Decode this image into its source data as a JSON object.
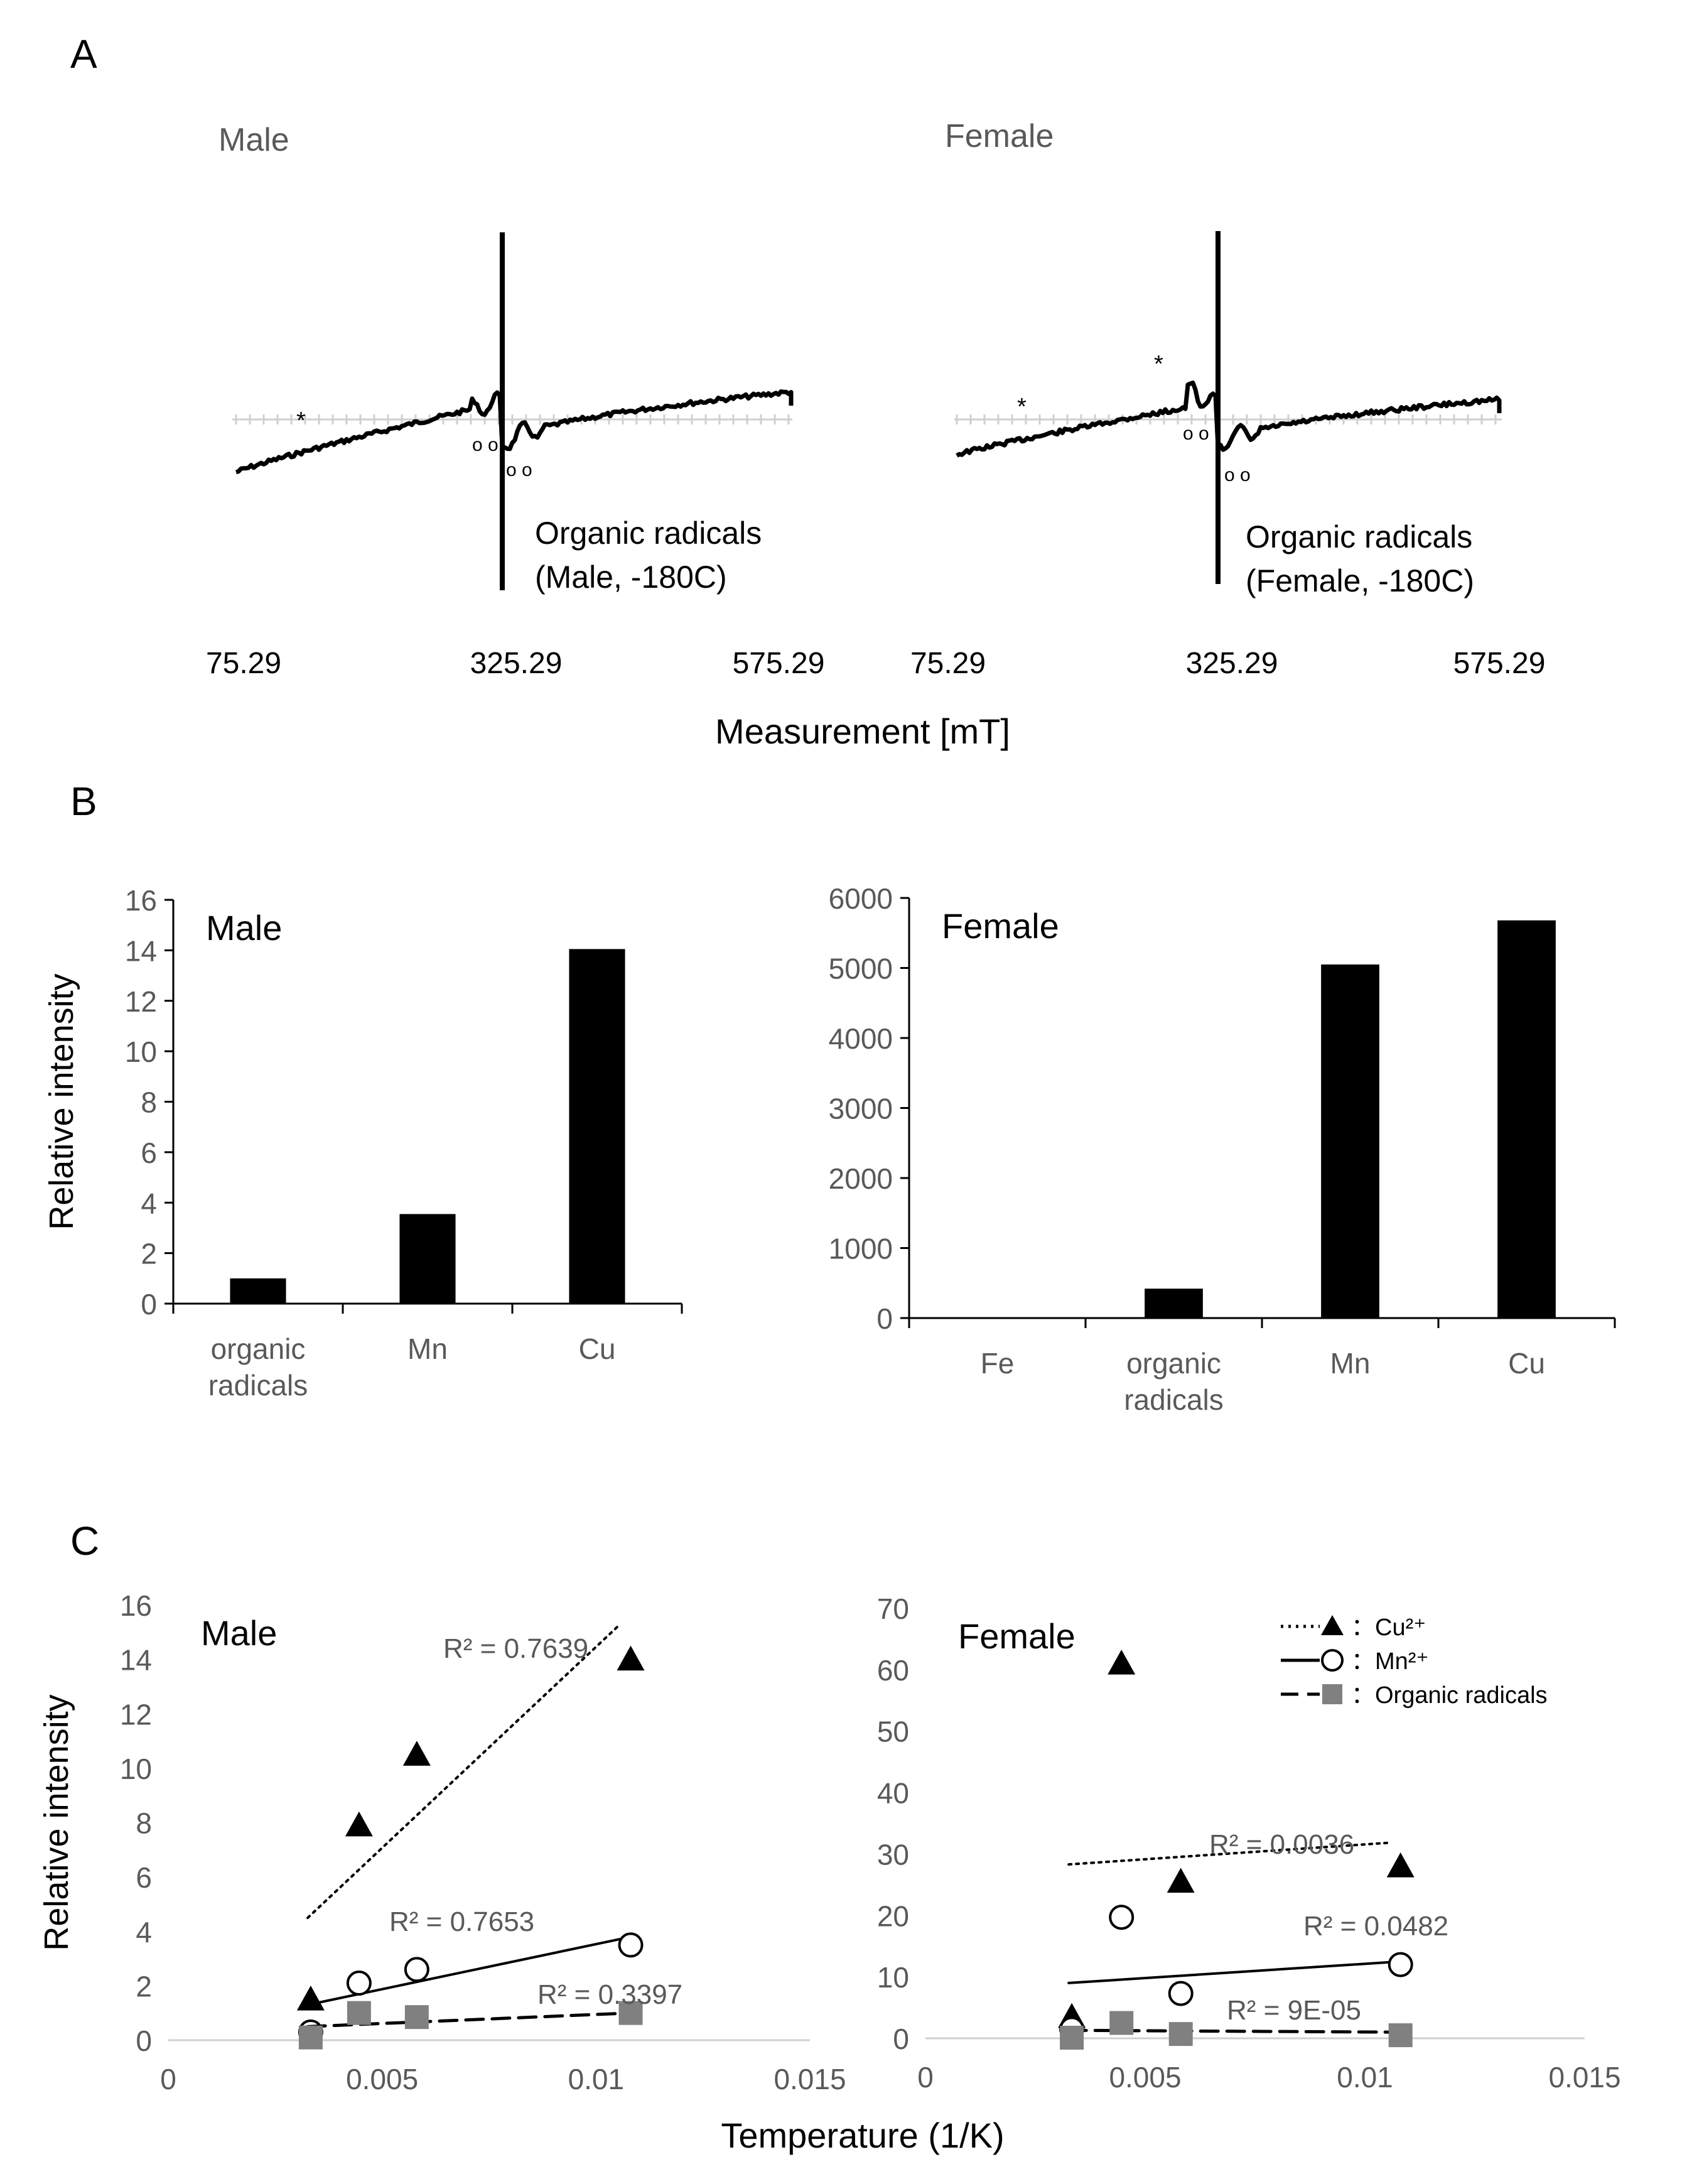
{
  "panels": {
    "A": {
      "label": "A",
      "xlabel": "Measurement [mT]",
      "male": {
        "title": "Male",
        "annotation_line1": "Organic radicals",
        "annotation_line2": "(Male, -180C)",
        "ticks": [
          "75.29",
          "325.29",
          "575.29"
        ],
        "asterisk": "*",
        "circles": "o o",
        "circles2": "o o"
      },
      "female": {
        "title": "Female",
        "annotation_line1": "Organic radicals",
        "annotation_line2": "(Female, -180C)",
        "ticks": [
          "75.29",
          "325.29",
          "575.29"
        ],
        "asterisk": "*",
        "circles": "o o",
        "circles2": "o o"
      }
    },
    "B": {
      "label": "B"
    },
    "C": {
      "label": "C"
    }
  },
  "chart_data": [
    {
      "id": "B-male",
      "type": "bar",
      "title": "Male",
      "ylabel": "Relative intensity",
      "categories": [
        [
          "organic",
          "radicals"
        ],
        [
          "Mn"
        ],
        [
          "Cu"
        ]
      ],
      "values": [
        1.0,
        3.55,
        14.05
      ],
      "ylim": [
        0,
        16
      ],
      "yticks": [
        0,
        2,
        4,
        6,
        8,
        10,
        12,
        14,
        16
      ],
      "color": "#000000"
    },
    {
      "id": "B-female",
      "type": "bar",
      "title": "Female",
      "ylabel": "",
      "categories": [
        [
          "Fe"
        ],
        [
          "organic",
          "radicals"
        ],
        [
          "Mn"
        ],
        [
          "Cu"
        ]
      ],
      "values": [
        0,
        420,
        5050,
        5680
      ],
      "ylim": [
        0,
        6000
      ],
      "yticks": [
        0,
        1000,
        2000,
        3000,
        4000,
        5000,
        6000
      ],
      "color": "#000000"
    },
    {
      "id": "C-male",
      "type": "scatter",
      "title": "Male",
      "ylabel": "Relative intensity",
      "xlabel": "Temperature (1/K)",
      "xlim": [
        0,
        0.015
      ],
      "ylim": [
        0,
        16
      ],
      "xticks": [
        "0",
        "0.005",
        "0.01",
        "0.015"
      ],
      "yticks": [
        0,
        2,
        4,
        6,
        8,
        10,
        12,
        14,
        16
      ],
      "series": [
        {
          "marker": "triangle",
          "color": "#000000",
          "x": [
            0.00333,
            0.00446,
            0.00581,
            0.01081
          ],
          "y": [
            1.5,
            7.9,
            10.5,
            14.0
          ],
          "trend": {
            "style": "dotted",
            "x": [
              0.00326,
              0.0105
            ],
            "y": [
              4.5,
              15.2
            ]
          },
          "r2": "R² = 0.7639"
        },
        {
          "marker": "circle",
          "color": "#000000",
          "x": [
            0.00333,
            0.00446,
            0.00581,
            0.01081
          ],
          "y": [
            0.3,
            2.1,
            2.6,
            3.5
          ],
          "trend": {
            "style": "solid",
            "x": [
              0.00326,
              0.01081
            ],
            "y": [
              1.3,
              3.8
            ]
          },
          "r2": "R² = 0.7653"
        },
        {
          "marker": "square",
          "color": "#808080",
          "x": [
            0.00333,
            0.00446,
            0.00581,
            0.01081
          ],
          "y": [
            0.1,
            1.0,
            0.85,
            1.0
          ],
          "trend": {
            "style": "dashed",
            "x": [
              0.00326,
              0.01081
            ],
            "y": [
              0.5,
              1.0
            ]
          },
          "r2": "R² = 0.3397"
        }
      ]
    },
    {
      "id": "C-female",
      "type": "scatter",
      "title": "Female",
      "ylabel": "",
      "xlabel": "",
      "xlim": [
        0,
        0.015
      ],
      "ylim": [
        0,
        70
      ],
      "xticks": [
        "0",
        "0.005",
        "0.01",
        "0.015"
      ],
      "yticks": [
        0,
        10,
        20,
        30,
        40,
        50,
        60,
        70
      ],
      "legend": {
        "position": "top-right",
        "entries": [
          {
            "label": "：Cu²⁺",
            "marker": "triangle",
            "line": "dotted"
          },
          {
            "label": "：Mn²⁺",
            "marker": "circle",
            "line": "solid"
          },
          {
            "label": "：Organic radicals",
            "marker": "square",
            "line": "dashed"
          }
        ]
      },
      "series": [
        {
          "marker": "triangle",
          "color": "#000000",
          "x": [
            0.00333,
            0.00446,
            0.00581,
            0.01081
          ],
          "y": [
            3.5,
            61,
            25.5,
            28
          ],
          "trend": {
            "style": "dotted",
            "x": [
              0.00326,
              0.0105
            ],
            "y": [
              28.3,
              31.8
            ]
          },
          "r2": "R² = 0.0036"
        },
        {
          "marker": "circle",
          "color": "#000000",
          "x": [
            0.00333,
            0.00446,
            0.00581,
            0.01081
          ],
          "y": [
            1.5,
            19.7,
            7.3,
            12
          ],
          "trend": {
            "style": "solid",
            "x": [
              0.00326,
              0.01081
            ],
            "y": [
              9.0,
              12.5
            ]
          },
          "r2": "R² = 0.0482"
        },
        {
          "marker": "square",
          "color": "#808080",
          "x": [
            0.00333,
            0.00446,
            0.00581,
            0.01081
          ],
          "y": [
            0.1,
            2.5,
            0.7,
            0.5
          ],
          "trend": {
            "style": "dashed",
            "x": [
              0.00326,
              0.01081
            ],
            "y": [
              1.3,
              1.0
            ]
          },
          "r2": "R² = 9E-05"
        }
      ]
    }
  ]
}
